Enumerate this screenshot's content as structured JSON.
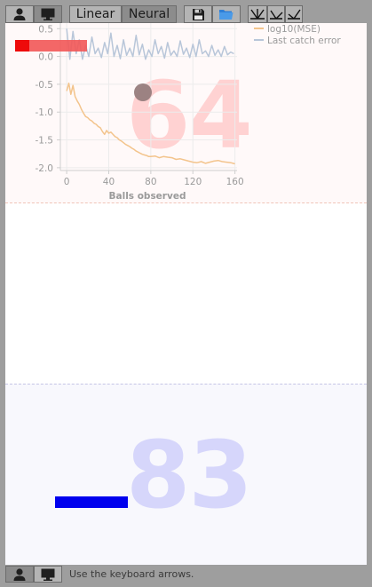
{
  "toolbar": {
    "player_a_icon": "person-icon",
    "player_b_icon": "monitor-icon",
    "model_options": [
      "Linear",
      "Neural"
    ],
    "model_selected": "Neural",
    "save_icon": "floppy-disk-icon",
    "open_icon": "folder-open-icon",
    "plot_icons": [
      "error-fan-icon",
      "error-up-icon",
      "error-down-icon"
    ]
  },
  "game": {
    "top_score": "64",
    "bottom_score": "83",
    "top_paddle_color": "#ee0b0b",
    "bottom_paddle_color": "#0000ee",
    "ball_color": "#977d7d"
  },
  "chart_data": {
    "type": "line",
    "xlabel": "Balls observed",
    "ylabel": "",
    "xlim": [
      -6,
      162
    ],
    "ylim": [
      -2.05,
      0.6
    ],
    "xticks": [
      "0",
      "40",
      "80",
      "120",
      "160"
    ],
    "yticks": [
      "0.5",
      "0.0",
      "-0.5",
      "-1.0",
      "-1.5",
      "-2.0"
    ],
    "legend_position": "top-right",
    "series": [
      {
        "name": "log10(MSE)",
        "color": "#f3c48c",
        "x": [
          0,
          2,
          4,
          6,
          8,
          10,
          12,
          14,
          16,
          18,
          20,
          22,
          24,
          26,
          28,
          30,
          32,
          34,
          36,
          38,
          40,
          42,
          44,
          46,
          48,
          50,
          52,
          54,
          56,
          58,
          60,
          62,
          64,
          66,
          68,
          70,
          72,
          74,
          76,
          78,
          80,
          84,
          88,
          92,
          96,
          100,
          104,
          108,
          112,
          116,
          120,
          124,
          128,
          132,
          136,
          140,
          144,
          148,
          152,
          156,
          160
        ],
        "values": [
          -0.62,
          -0.48,
          -0.68,
          -0.52,
          -0.72,
          -0.8,
          -0.86,
          -0.95,
          -1.02,
          -1.08,
          -1.1,
          -1.14,
          -1.16,
          -1.2,
          -1.22,
          -1.26,
          -1.28,
          -1.35,
          -1.4,
          -1.33,
          -1.38,
          -1.36,
          -1.4,
          -1.44,
          -1.46,
          -1.5,
          -1.52,
          -1.55,
          -1.58,
          -1.6,
          -1.62,
          -1.65,
          -1.67,
          -1.7,
          -1.72,
          -1.74,
          -1.76,
          -1.77,
          -1.78,
          -1.8,
          -1.8,
          -1.79,
          -1.82,
          -1.8,
          -1.81,
          -1.82,
          -1.85,
          -1.84,
          -1.86,
          -1.88,
          -1.9,
          -1.91,
          -1.89,
          -1.92,
          -1.9,
          -1.88,
          -1.87,
          -1.89,
          -1.9,
          -1.91,
          -1.93
        ]
      },
      {
        "name": "Last catch error",
        "color": "#b8c6d9",
        "x": [
          0,
          3,
          6,
          9,
          12,
          15,
          18,
          21,
          24,
          27,
          30,
          33,
          36,
          39,
          42,
          45,
          48,
          51,
          54,
          57,
          60,
          63,
          66,
          69,
          72,
          75,
          78,
          81,
          84,
          87,
          90,
          93,
          96,
          99,
          102,
          105,
          108,
          111,
          114,
          117,
          120,
          123,
          126,
          129,
          132,
          135,
          138,
          141,
          144,
          147,
          150,
          153,
          156,
          159
        ],
        "values": [
          0.5,
          -0.05,
          0.45,
          0.05,
          0.3,
          -0.05,
          0.2,
          0.0,
          0.35,
          0.05,
          0.15,
          -0.02,
          0.25,
          0.05,
          0.42,
          0.0,
          0.2,
          -0.04,
          0.3,
          0.02,
          0.15,
          0.0,
          0.38,
          0.03,
          0.22,
          -0.05,
          0.12,
          0.0,
          0.3,
          0.05,
          0.18,
          -0.03,
          0.25,
          0.02,
          0.1,
          0.0,
          0.28,
          0.04,
          0.15,
          -0.02,
          0.22,
          0.0,
          0.3,
          0.05,
          0.1,
          0.0,
          0.2,
          0.02,
          0.12,
          0.0,
          0.18,
          0.03,
          0.08,
          0.05
        ]
      }
    ]
  },
  "bottombar": {
    "player_a_icon": "person-icon",
    "player_b_icon": "monitor-icon",
    "hint": "Use the keyboard arrows."
  }
}
